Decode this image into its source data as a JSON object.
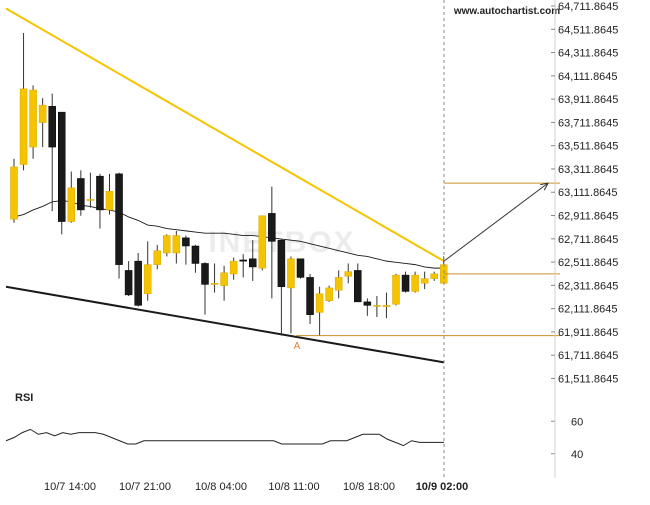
{
  "brand": "www.autochartist.com",
  "watermark": "INETBOX",
  "rsi_label": "RSI",
  "colors": {
    "bull": "#f5c400",
    "bear": "#1a1a1a",
    "trend_upper": "#f5c400",
    "trend_lower": "#1a1a1a",
    "level_line": "#c8902a",
    "ma_line": "#1a1a1a",
    "marker": "#e08030"
  },
  "chart_data": [
    {
      "type": "candlestick",
      "title": "",
      "y_tick_labels": [
        "64,711.8645",
        "64,511.8645",
        "64,311.8645",
        "64,111.8645",
        "63,911.8645",
        "63,711.8645",
        "63,511.8645",
        "63,311.8645",
        "63,111.8645",
        "62,911.8645",
        "62,711.8645",
        "62,511.8645",
        "62,311.8645",
        "62,111.8645",
        "61,911.8645",
        "61,711.8645",
        "61,511.8645"
      ],
      "x_tick_labels": [
        "10/7 14:00",
        "10/7 21:00",
        "10/8 04:00",
        "10/8 11:00",
        "10/8 18:00",
        "10/9 02:00"
      ],
      "ylim": [
        61430,
        64730
      ],
      "candles": [
        {
          "o": 62880,
          "h": 63400,
          "l": 62850,
          "c": 63330
        },
        {
          "o": 63350,
          "h": 64480,
          "l": 63300,
          "c": 64000
        },
        {
          "o": 63500,
          "h": 64030,
          "l": 63400,
          "c": 63990
        },
        {
          "o": 63710,
          "h": 63920,
          "l": 63500,
          "c": 63860
        },
        {
          "o": 63850,
          "h": 63960,
          "l": 62950,
          "c": 63500
        },
        {
          "o": 63800,
          "h": 63800,
          "l": 62750,
          "c": 62860
        },
        {
          "o": 62860,
          "h": 63290,
          "l": 62850,
          "c": 63150
        },
        {
          "o": 63230,
          "h": 63300,
          "l": 62910,
          "c": 62960
        },
        {
          "o": 63050,
          "h": 63280,
          "l": 62980,
          "c": 63050
        },
        {
          "o": 63250,
          "h": 63270,
          "l": 62800,
          "c": 62960
        },
        {
          "o": 62960,
          "h": 63270,
          "l": 62920,
          "c": 63120
        },
        {
          "o": 63270,
          "h": 63280,
          "l": 62370,
          "c": 62490
        },
        {
          "o": 62440,
          "h": 62520,
          "l": 62220,
          "c": 62230
        },
        {
          "o": 62520,
          "h": 62590,
          "l": 62130,
          "c": 62140
        },
        {
          "o": 62240,
          "h": 62690,
          "l": 62180,
          "c": 62490
        },
        {
          "o": 62490,
          "h": 62660,
          "l": 62450,
          "c": 62610
        },
        {
          "o": 62590,
          "h": 62750,
          "l": 62560,
          "c": 62740
        },
        {
          "o": 62590,
          "h": 62780,
          "l": 62500,
          "c": 62740
        },
        {
          "o": 62720,
          "h": 62740,
          "l": 62490,
          "c": 62650
        },
        {
          "o": 62650,
          "h": 62660,
          "l": 62420,
          "c": 62500
        },
        {
          "o": 62500,
          "h": 62510,
          "l": 62060,
          "c": 62320
        },
        {
          "o": 62320,
          "h": 62500,
          "l": 62250,
          "c": 62330
        },
        {
          "o": 62310,
          "h": 62480,
          "l": 62180,
          "c": 62420
        },
        {
          "o": 62410,
          "h": 62550,
          "l": 62360,
          "c": 62520
        },
        {
          "o": 62530,
          "h": 62580,
          "l": 62380,
          "c": 62520
        },
        {
          "o": 62540,
          "h": 62700,
          "l": 62350,
          "c": 62470
        },
        {
          "o": 62460,
          "h": 62910,
          "l": 62440,
          "c": 62910
        },
        {
          "o": 62930,
          "h": 63160,
          "l": 62200,
          "c": 62690
        },
        {
          "o": 62700,
          "h": 62710,
          "l": 61880,
          "c": 62300
        },
        {
          "o": 62290,
          "h": 62560,
          "l": 61900,
          "c": 62540
        },
        {
          "o": 62540,
          "h": 62540,
          "l": 62370,
          "c": 62380
        },
        {
          "o": 62380,
          "h": 62410,
          "l": 61980,
          "c": 62060
        },
        {
          "o": 62080,
          "h": 62300,
          "l": 61880,
          "c": 62240
        },
        {
          "o": 62180,
          "h": 62310,
          "l": 62170,
          "c": 62290
        },
        {
          "o": 62270,
          "h": 62440,
          "l": 62200,
          "c": 62380
        },
        {
          "o": 62390,
          "h": 62500,
          "l": 62330,
          "c": 62430
        },
        {
          "o": 62440,
          "h": 62500,
          "l": 62180,
          "c": 62170
        },
        {
          "o": 62170,
          "h": 62200,
          "l": 62050,
          "c": 62140
        },
        {
          "o": 62140,
          "h": 62220,
          "l": 62040,
          "c": 62140
        },
        {
          "o": 62130,
          "h": 62250,
          "l": 62030,
          "c": 62140
        },
        {
          "o": 62150,
          "h": 62410,
          "l": 62140,
          "c": 62400
        },
        {
          "o": 62400,
          "h": 62430,
          "l": 62250,
          "c": 62260
        },
        {
          "o": 62260,
          "h": 62430,
          "l": 62250,
          "c": 62400
        },
        {
          "o": 62330,
          "h": 62430,
          "l": 62280,
          "c": 62370
        },
        {
          "o": 62370,
          "h": 62430,
          "l": 62350,
          "c": 62410
        },
        {
          "o": 62330,
          "h": 62560,
          "l": 62330,
          "c": 62490
        }
      ],
      "moving_average": [
        62900,
        62920,
        62960,
        62990,
        63030,
        63040,
        63030,
        63000,
        62990,
        62970,
        62960,
        62940,
        62900,
        62870,
        62830,
        62820,
        62800,
        62790,
        62780,
        62770,
        62760,
        62760,
        62760,
        62750,
        62740,
        62740,
        62730,
        62720,
        62710,
        62700,
        62690,
        62670,
        62650,
        62630,
        62610,
        62590,
        62570,
        62560,
        62540,
        62520,
        62510,
        62500,
        62490,
        62470,
        62460,
        62460
      ],
      "pattern_lines": {
        "upper": {
          "start": 64690,
          "end": 62520
        },
        "lower": {
          "start": 62300,
          "end": 61650
        }
      },
      "levels": [
        62410,
        61880
      ],
      "forecast": {
        "level": 63190,
        "arrow_from": 62520,
        "arrow_to": 63190
      },
      "marker": {
        "label": "A",
        "value": 61800
      }
    },
    {
      "type": "line",
      "title": "RSI",
      "y_tick_labels": [
        "60",
        "40"
      ],
      "ylim": [
        30,
        70
      ],
      "values": [
        48,
        50,
        53,
        55,
        52,
        53,
        51,
        53,
        52,
        53,
        53,
        53,
        52,
        50,
        48,
        46,
        46,
        48,
        48,
        48,
        48,
        48,
        48,
        48,
        48,
        48,
        48,
        48,
        48,
        48,
        48,
        48,
        48,
        48,
        46,
        46,
        46,
        46,
        46,
        46,
        48,
        48,
        48,
        50,
        52,
        52,
        52,
        49,
        47,
        45,
        48,
        47,
        47,
        47,
        47
      ]
    }
  ]
}
